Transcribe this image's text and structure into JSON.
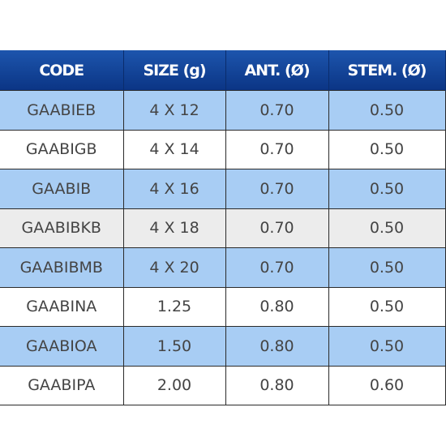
{
  "table": {
    "columns": [
      "CODE",
      "SIZE (g)",
      "ANT. (Ø)",
      "STEM. (Ø)"
    ],
    "rows": [
      [
        "GAABIEB",
        "4 X 12",
        "0.70",
        "0.50"
      ],
      [
        "GAABIGB",
        "4 X 14",
        "0.70",
        "0.50"
      ],
      [
        "GAABIB",
        "4 X 16",
        "0.70",
        "0.50"
      ],
      [
        "GAABIBKB",
        "4 X 18",
        "0.70",
        "0.50"
      ],
      [
        "GAABIBMB",
        "4 X 20",
        "0.70",
        "0.50"
      ],
      [
        "GAABINA",
        "1.25",
        "0.80",
        "0.50"
      ],
      [
        "GAABIOA",
        "1.50",
        "0.80",
        "0.50"
      ],
      [
        "GAABIPA",
        "2.00",
        "0.80",
        "0.60"
      ]
    ]
  }
}
